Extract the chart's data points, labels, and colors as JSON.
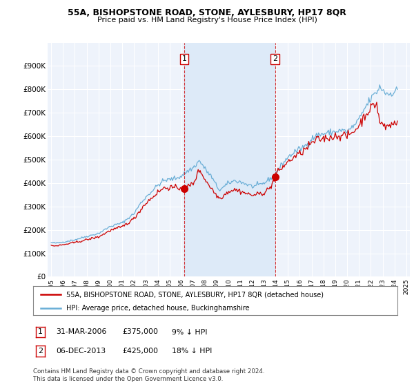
{
  "title": "55A, BISHOPSTONE ROAD, STONE, AYLESBURY, HP17 8QR",
  "subtitle": "Price paid vs. HM Land Registry's House Price Index (HPI)",
  "background_color": "#ffffff",
  "plot_bg_color": "#eef3fb",
  "grid_color": "#ffffff",
  "hpi_color": "#6aaed6",
  "price_color": "#cc0000",
  "shade_color": "#ddeaf8",
  "legend_label_price": "55A, BISHOPSTONE ROAD, STONE, AYLESBURY, HP17 8QR (detached house)",
  "legend_label_hpi": "HPI: Average price, detached house, Buckinghamshire",
  "footnote": "Contains HM Land Registry data © Crown copyright and database right 2024.\nThis data is licensed under the Open Government Licence v3.0.",
  "ylim": [
    0,
    1000000
  ],
  "yticks": [
    0,
    100000,
    200000,
    300000,
    400000,
    500000,
    600000,
    700000,
    800000,
    900000
  ],
  "ytick_labels": [
    "£0",
    "£100K",
    "£200K",
    "£300K",
    "£400K",
    "£500K",
    "£600K",
    "£700K",
    "£800K",
    "£900K"
  ],
  "sale1_year": 2006.25,
  "sale1_price": 375000,
  "sale2_year": 2013.92,
  "sale2_price": 425000,
  "vline1_year": 2006.25,
  "vline2_year": 2013.92,
  "xtick_years": [
    1995,
    1996,
    1997,
    1998,
    1999,
    2000,
    2001,
    2002,
    2003,
    2004,
    2005,
    2006,
    2007,
    2008,
    2009,
    2010,
    2011,
    2012,
    2013,
    2014,
    2015,
    2016,
    2017,
    2018,
    2019,
    2020,
    2021,
    2022,
    2023,
    2024,
    2025
  ]
}
